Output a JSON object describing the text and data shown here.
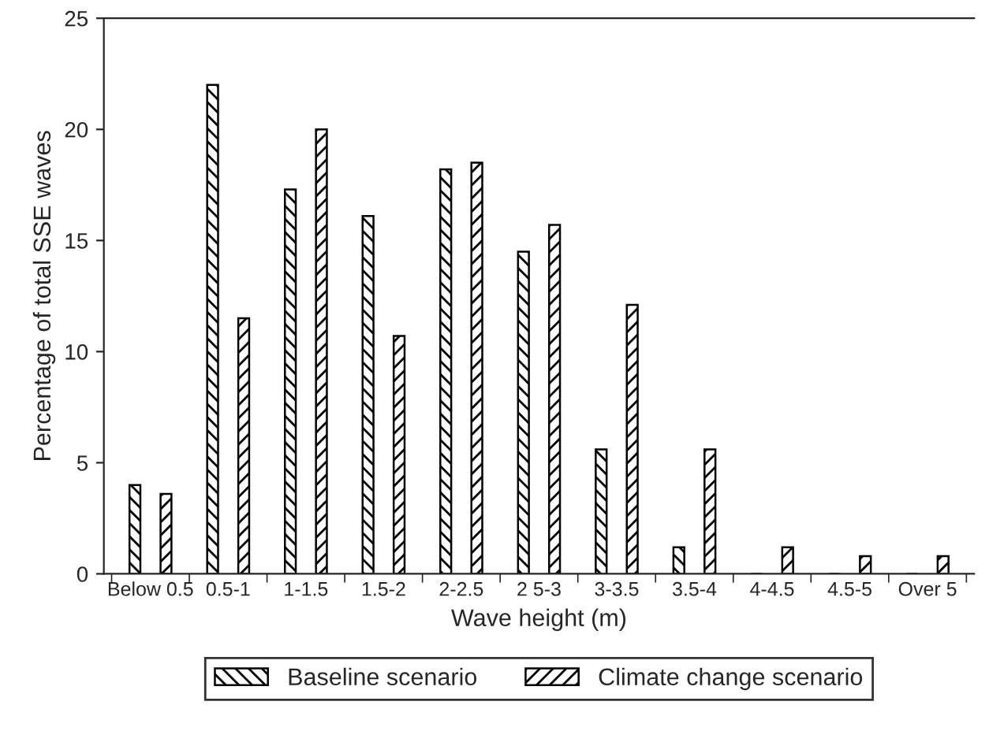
{
  "chart_data": {
    "type": "bar",
    "xlabel": "Wave height (m)",
    "ylabel": "Percentage of total SSE waves",
    "categories": [
      "Below 0.5",
      "0.5-1",
      "1-1.5",
      "1.5-2",
      "2-2.5",
      "2 5-3",
      "3-3.5",
      "3.5-4",
      "4-4.5",
      "4.5-5",
      "Over 5"
    ],
    "series": [
      {
        "name": "Baseline scenario",
        "color": "#000000",
        "values": [
          4.0,
          22.0,
          17.3,
          16.1,
          18.2,
          14.5,
          5.6,
          1.2,
          0,
          0,
          0
        ]
      },
      {
        "name": "Climate change scenario",
        "color": "#000000",
        "values": [
          3.6,
          11.5,
          20.0,
          10.7,
          18.5,
          15.7,
          12.1,
          5.6,
          1.2,
          0.8,
          0.8
        ]
      }
    ],
    "ylim": [
      0,
      25
    ],
    "yticks": [
      0,
      5,
      10,
      15,
      20,
      25
    ],
    "grid": false,
    "legend": "bottom"
  }
}
